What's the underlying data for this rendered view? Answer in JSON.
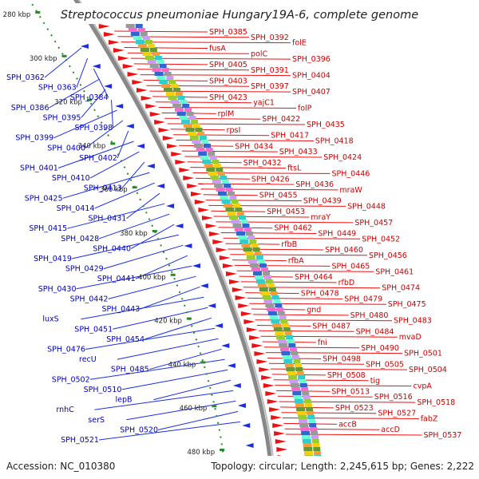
{
  "title": "Streptococcus pneumoniae Hungary19A-6, complete genome",
  "footer": {
    "accession": "Accession: NC_010380",
    "summary": "Topology: circular; Length: 2,245,615 bp; Genes: 2,222"
  },
  "colors": {
    "backbone": "#888888",
    "tick": "#2a8a2a",
    "forward_gene": "#ee1111",
    "reverse_gene": "#1a2ee0",
    "left_label": "#0000bb",
    "right_label": "#cc0000"
  },
  "kbp_ticks": [
    "280 kbp",
    "300 kbp",
    "320 kbp",
    "340 kbp",
    "360 kbp",
    "380 kbp",
    "400 kbp",
    "420 kbp",
    "440 kbp",
    "460 kbp",
    "480 kbp"
  ],
  "left_labels": [
    "SPH_0362",
    "SPH_0363",
    "SPH_0384",
    "SPH_0386",
    "SPH_0395",
    "SPH_0398",
    "SPH_0399",
    "SPH_0400",
    "SPH_0402",
    "SPH_0401",
    "SPH_0410",
    "SPH_0413",
    "SPH_0425",
    "SPH_0414",
    "SPH_0431",
    "SPH_0415",
    "SPH_0428",
    "SPH_0440",
    "SPH_0419",
    "SPH_0429",
    "SPH_0441",
    "SPH_0430",
    "SPH_0442",
    "SPH_0443",
    "luxS",
    "SPH_0451",
    "SPH_0454",
    "SPH_0476",
    "recU",
    "SPH_0485",
    "SPH_0502",
    "SPH_0510",
    "lepB",
    "rnhC",
    "serS",
    "SPH_0520",
    "SPH_0521"
  ],
  "right_labels": [
    "SPH_0385",
    "SPH_0392",
    "folE",
    "fusA",
    "polC",
    "SPH_0396",
    "SPH_0405",
    "SPH_0391",
    "SPH_0404",
    "SPH_0403",
    "SPH_0397",
    "SPH_0407",
    "SPH_0423",
    "yajC1",
    "folP",
    "rplM",
    "SPH_0422",
    "SPH_0435",
    "rpsI",
    "SPH_0417",
    "SPH_0418",
    "SPH_0434",
    "SPH_0433",
    "SPH_0424",
    "SPH_0432",
    "ftsL",
    "SPH_0446",
    "SPH_0426",
    "SPH_0436",
    "mraW",
    "SPH_0455",
    "SPH_0439",
    "SPH_0448",
    "SPH_0453",
    "mraY",
    "SPH_0457",
    "SPH_0462",
    "SPH_0449",
    "SPH_0452",
    "rfbB",
    "SPH_0460",
    "SPH_0456",
    "rfbA",
    "SPH_0465",
    "SPH_0461",
    "SPH_0464",
    "rfbD",
    "SPH_0474",
    "SPH_0478",
    "SPH_0479",
    "SPH_0475",
    "gnd",
    "SPH_0480",
    "SPH_0483",
    "SPH_0487",
    "SPH_0484",
    "mvaD",
    "fni",
    "SPH_0490",
    "SPH_0501",
    "SPH_0498",
    "SPH_0505",
    "SPH_0504",
    "SPH_0508",
    "tig",
    "cvpA",
    "SPH_0513",
    "SPH_0516",
    "SPH_0518",
    "SPH_0523",
    "SPH_0527",
    "fabZ",
    "accB",
    "accD",
    "SPH_0537"
  ]
}
